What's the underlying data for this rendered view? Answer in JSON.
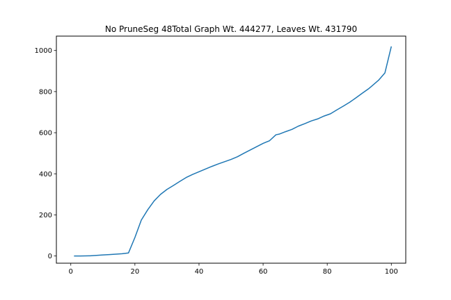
{
  "chart_data": {
    "type": "line",
    "title": "No PruneSeg 48Total Graph Wt. 444277, Leaves Wt. 431790",
    "xlabel": "",
    "ylabel": "",
    "xlim": [
      -4.5,
      104.5
    ],
    "ylim": [
      -35,
      1070
    ],
    "x_ticks": [
      0,
      20,
      40,
      60,
      80,
      100
    ],
    "y_ticks": [
      0,
      200,
      400,
      600,
      800,
      1000
    ],
    "grid": false,
    "color": "#1f77b4",
    "series": [
      {
        "x": [
          1,
          3,
          6,
          8,
          10,
          12,
          14,
          16,
          18,
          20,
          22,
          24,
          26,
          28,
          30,
          32,
          34,
          36,
          38,
          40,
          42,
          44,
          46,
          48,
          50,
          52,
          54,
          56,
          58,
          60,
          62,
          64,
          65,
          67,
          69,
          71,
          73,
          75,
          77,
          79,
          81,
          83,
          85,
          87,
          89,
          91,
          93,
          94,
          96,
          98,
          100
        ],
        "y": [
          0,
          0,
          1,
          3,
          5,
          7,
          9,
          11,
          15,
          90,
          175,
          225,
          268,
          300,
          324,
          343,
          363,
          382,
          397,
          410,
          423,
          436,
          448,
          459,
          470,
          483,
          500,
          516,
          532,
          548,
          561,
          590,
          593,
          605,
          616,
          632,
          644,
          657,
          667,
          681,
          692,
          711,
          729,
          748,
          770,
          793,
          815,
          828,
          855,
          891,
          1020
        ]
      }
    ]
  }
}
